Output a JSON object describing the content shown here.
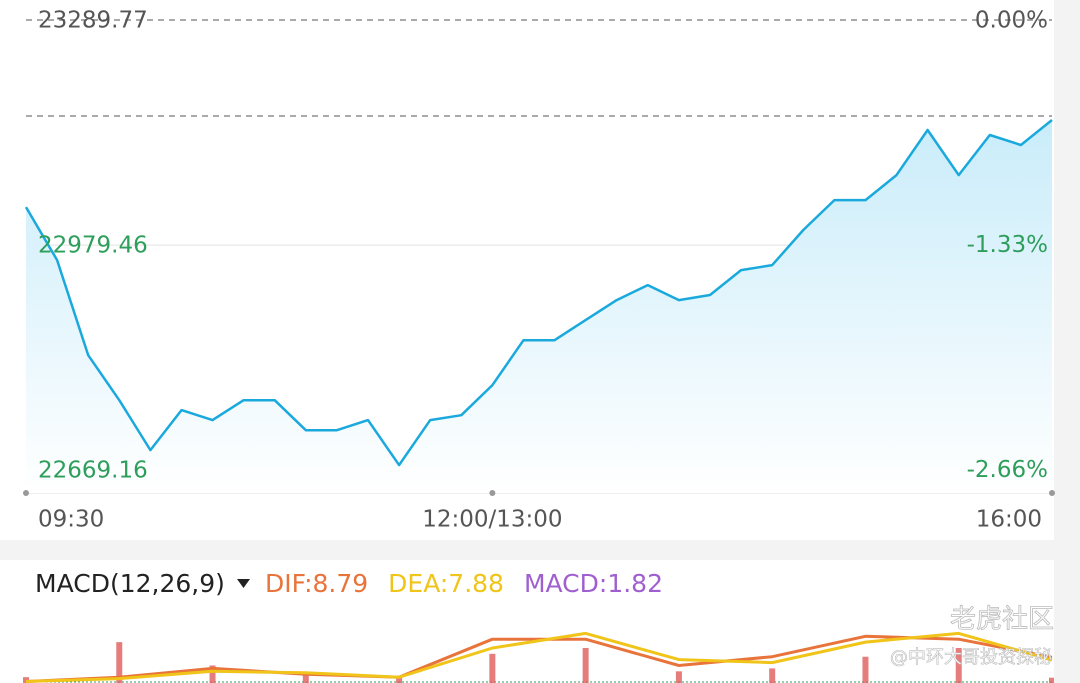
{
  "chart_data": [
    {
      "type": "line",
      "x": [
        0,
        10,
        20,
        30,
        40,
        50,
        60,
        70,
        80,
        90,
        100,
        110,
        120,
        130,
        140,
        150,
        160,
        170,
        180,
        190,
        200,
        210,
        220,
        230,
        240,
        250,
        260,
        270,
        280,
        290,
        300,
        310,
        320,
        330
      ],
      "xlim": [
        0,
        330
      ],
      "xticks": [
        {
          "value": 0,
          "label": "09:30"
        },
        {
          "value": 150,
          "label": "12:00/13:00"
        },
        {
          "value": 330,
          "label": "16:00"
        }
      ],
      "ylim": [
        22637.7,
        23289.77
      ],
      "yticks": [
        23289.77,
        22979.46,
        22669.16
      ],
      "y2lim": [
        -2.8,
        0
      ],
      "y2ticks": [
        {
          "value": 0,
          "label": "0.00%"
        },
        {
          "value": -1.33,
          "label": "-1.33%"
        },
        {
          "value": -2.66,
          "label": "-2.66%"
        }
      ],
      "high_line": 23157.4,
      "series": [
        {
          "color": "#1aa9dc",
          "values": [
            23031.9,
            22958.8,
            22827.7,
            22765.7,
            22696.8,
            22752.0,
            22738.2,
            22765.7,
            22765.7,
            22724.3,
            22724.3,
            22738.2,
            22676.1,
            22738.2,
            22745.0,
            22786.4,
            22848.4,
            22848.4,
            22876.1,
            22903.6,
            22924.3,
            22903.6,
            22910.6,
            22945.0,
            22951.9,
            23000.2,
            23041.5,
            23041.5,
            23076.0,
            23138.1,
            23076.0,
            23131.2,
            23117.4,
            23151.9
          ]
        }
      ]
    },
    {
      "type": "macd",
      "title": "MACD(12,26,9)",
      "x": [
        0,
        30,
        60,
        90,
        120,
        150,
        180,
        210,
        240,
        270,
        300,
        330
      ],
      "xlim": [
        0,
        330
      ],
      "ylim": [
        0,
        25
      ],
      "series": [
        {
          "label": "DIF:8.79",
          "color": "#e8743b",
          "values": [
            0.5,
            2,
            5,
            3,
            2,
            15,
            15,
            6,
            9,
            16,
            15,
            8.79
          ]
        },
        {
          "label": "DEA:7.88",
          "color": "#f0c419",
          "values": [
            0.5,
            1.5,
            4,
            3.5,
            2,
            12,
            17,
            8,
            7,
            14,
            17,
            7.88
          ]
        },
        {
          "label": "MACD:1.82",
          "color": "#a05fd0",
          "bar_color": "#e05c5c",
          "values": [
            2,
            14,
            6,
            3,
            2,
            10,
            12,
            4,
            5,
            9,
            12,
            1.82
          ]
        }
      ]
    }
  ],
  "watermark": {
    "title": "老虎社区",
    "subtitle": "@中环大哥投资探秘"
  }
}
